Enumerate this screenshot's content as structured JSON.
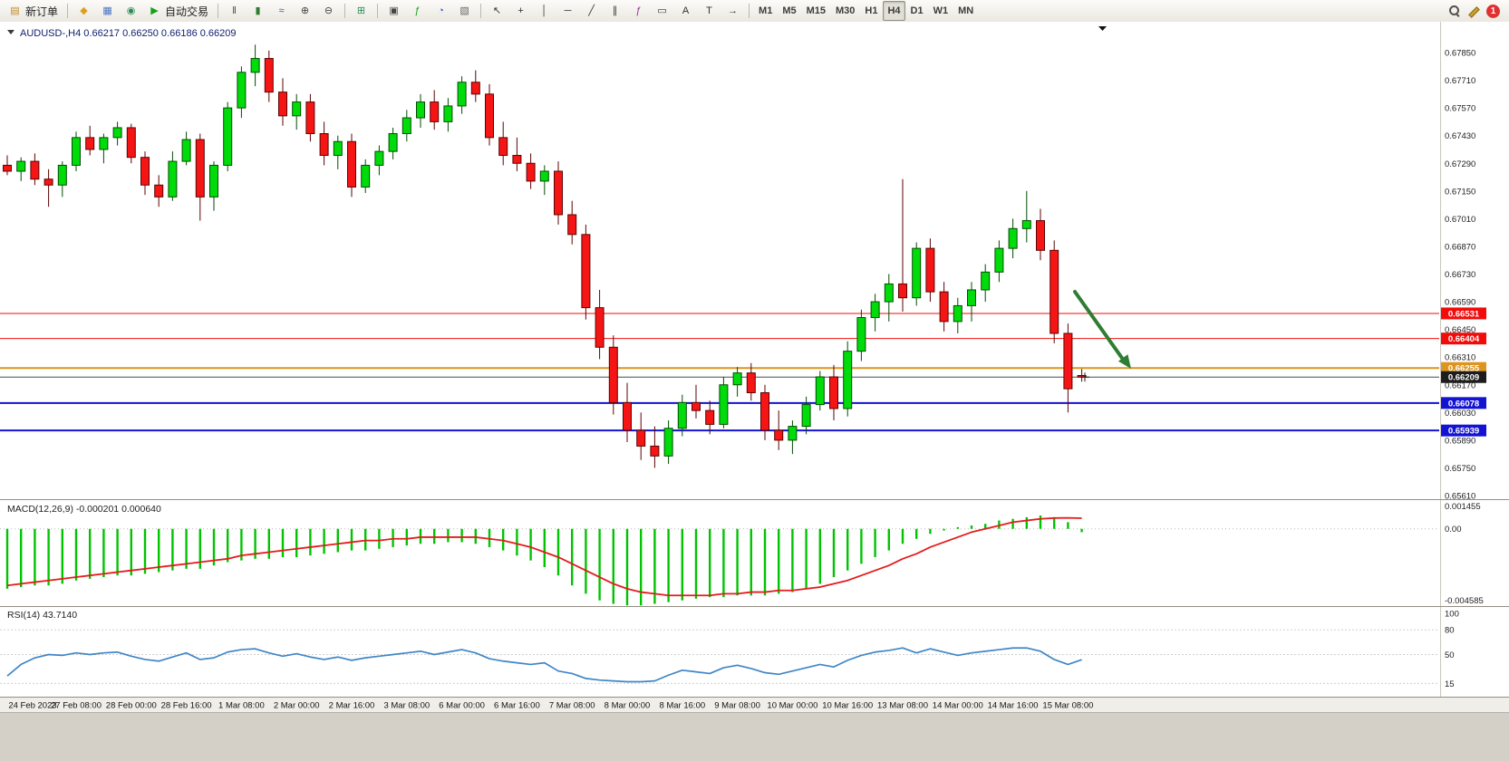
{
  "window": {
    "notification_count": "1"
  },
  "toolbar": {
    "items": [
      {
        "name": "new-order-button",
        "label": "新订单",
        "icon": "order-form-icon",
        "glyph": "▤",
        "glyph_color": "#c08a2a"
      },
      {
        "name": "separator"
      },
      {
        "name": "symbols-button",
        "icon": "gold-diamond-icon",
        "glyph": "◆",
        "glyph_color": "#d9a21b"
      },
      {
        "name": "charts-button",
        "icon": "chart-window-icon",
        "glyph": "▦",
        "glyph_color": "#4a72c4"
      },
      {
        "name": "market-watch-button",
        "icon": "globe-icon",
        "glyph": "◉",
        "glyph_color": "#2e8b57"
      },
      {
        "name": "auto-trading-button",
        "label": "自动交易",
        "icon": "play-icon",
        "glyph": "▶",
        "glyph_color": "#18a018"
      },
      {
        "name": "separator"
      },
      {
        "name": "bar-chart-button",
        "icon": "ohlc-bars-icon",
        "glyph": "‖",
        "glyph_color": "#444444"
      },
      {
        "name": "candlestick-chart-button",
        "icon": "candlestick-icon",
        "glyph": "▮",
        "glyph_color": "#2e7d32"
      },
      {
        "name": "line-chart-button",
        "icon": "line-chart-icon",
        "glyph": "≈",
        "glyph_color": "#2e5fb0"
      },
      {
        "name": "zoom-in-button",
        "icon": "zoom-in-icon",
        "glyph": "⊕",
        "glyph_color": "#444444"
      },
      {
        "name": "zoom-out-button",
        "icon": "zoom-out-icon",
        "glyph": "⊖",
        "glyph_color": "#444444"
      },
      {
        "name": "separator"
      },
      {
        "name": "tile-windows-button",
        "icon": "tile-windows-icon",
        "glyph": "⊞",
        "glyph_color": "#2e8b57"
      },
      {
        "name": "separator"
      },
      {
        "name": "arrange-windows-button",
        "icon": "arrange-windows-icon",
        "glyph": "▣",
        "glyph_color": "#444444"
      },
      {
        "name": "indicators-button",
        "icon": "indicators-icon",
        "glyph": "ƒ",
        "glyph_color": "#18a018"
      },
      {
        "name": "periods-button",
        "icon": "clock-icon",
        "glyph": "◔",
        "glyph_color": "#2e5fb0"
      },
      {
        "name": "templates-button",
        "icon": "template-icon",
        "glyph": "▧",
        "glyph_color": "#666666"
      },
      {
        "name": "separator"
      },
      {
        "name": "cursor-button",
        "icon": "cursor-arrow-icon",
        "glyph": "↖",
        "glyph_color": "#333333"
      },
      {
        "name": "crosshair-button",
        "icon": "crosshair-icon",
        "glyph": "+",
        "glyph_color": "#333333"
      },
      {
        "name": "vertical-line-button",
        "icon": "vertical-line-icon",
        "glyph": "│",
        "glyph_color": "#333333"
      },
      {
        "name": "horizontal-line-button",
        "icon": "horizontal-line-icon",
        "glyph": "─",
        "glyph_color": "#333333"
      },
      {
        "name": "trendline-button",
        "icon": "trendline-icon",
        "glyph": "╱",
        "glyph_color": "#333333"
      },
      {
        "name": "channel-button",
        "icon": "channel-icon",
        "glyph": "∥",
        "glyph_color": "#333333"
      },
      {
        "name": "fibonacci-button",
        "icon": "fibonacci-icon",
        "glyph": "ƒ",
        "glyph_color": "#9a2da0"
      },
      {
        "name": "shapes-button",
        "icon": "shapes-icon",
        "glyph": "▭",
        "glyph_color": "#333333"
      },
      {
        "name": "text-button",
        "icon": "text-icon",
        "glyph": "A",
        "glyph_color": "#333333"
      },
      {
        "name": "label-button",
        "icon": "label-icon",
        "glyph": "T",
        "glyph_color": "#333333"
      },
      {
        "name": "arrows-button",
        "icon": "arrows-icon",
        "glyph": "→",
        "glyph_color": "#333333"
      },
      {
        "name": "separator"
      }
    ],
    "right_items": [
      {
        "name": "search-button",
        "icon": "search-icon",
        "shape": "magnifier"
      },
      {
        "name": "edit-button",
        "icon": "pencil-icon",
        "shape": "pencil"
      },
      {
        "name": "notification-badge",
        "shape": "badge",
        "label": "1"
      }
    ]
  },
  "timeframes": {
    "items": [
      "M1",
      "M5",
      "M15",
      "M30",
      "H1",
      "H4",
      "D1",
      "W1",
      "MN"
    ],
    "active": "H4"
  },
  "chart": {
    "title_text": "AUDUSD-,H4 0.66217 0.66250 0.66186 0.66209",
    "title_color": "#10226e"
  },
  "chart_data": [
    {
      "type": "candlestick",
      "symbol": "AUDUSD-",
      "timeframe": "H4",
      "ohlc_display": "0.66217 0.66250 0.66186 0.66209",
      "ylim": [
        0.6561,
        0.6785
      ],
      "y_axis_ticks": [
        "0.67850",
        "0.67710",
        "0.67570",
        "0.67430",
        "0.67290",
        "0.67150",
        "0.67010",
        "0.66870",
        "0.66730",
        "0.66590",
        "0.66450",
        "0.66310",
        "0.66170",
        "0.66030",
        "0.65890",
        "0.65750",
        "0.65610"
      ],
      "x_axis_labels": [
        "24 Feb 2023",
        "27 Feb 08:00",
        "28 Feb 00:00",
        "28 Feb 16:00",
        "1 Mar 08:00",
        "2 Mar 00:00",
        "2 Mar 16:00",
        "3 Mar 08:00",
        "6 Mar 00:00",
        "6 Mar 16:00",
        "7 Mar 08:00",
        "8 Mar 00:00",
        "8 Mar 16:00",
        "9 Mar 08:00",
        "10 Mar 00:00",
        "10 Mar 16:00",
        "13 Mar 08:00",
        "14 Mar 00:00",
        "14 Mar 16:00",
        "15 Mar 08:00"
      ],
      "up_color": "#00dc0a",
      "down_color": "#f51515",
      "hlines": [
        {
          "price": 0.66531,
          "label": "0.66531",
          "color": "#f20b0b",
          "width": 1
        },
        {
          "price": 0.66404,
          "label": "0.66404",
          "color": "#f20b0b",
          "width": 1
        },
        {
          "price": 0.66255,
          "label": "0.66255",
          "color": "#dd951f",
          "width": 2
        },
        {
          "price": 0.66078,
          "label": "0.66078",
          "color": "#1313d1",
          "width": 2
        },
        {
          "price": 0.65939,
          "label": "0.65939",
          "color": "#1313d1",
          "width": 2
        }
      ],
      "current_price": {
        "price": 0.66209,
        "label": "0.66209",
        "color": "#1d1d1d"
      },
      "annotation_arrow": {
        "color": "#2f7d32"
      },
      "candles": [
        [
          0.6728,
          0.6733,
          0.6723,
          0.6725
        ],
        [
          0.6725,
          0.6732,
          0.672,
          0.673
        ],
        [
          0.673,
          0.6734,
          0.6718,
          0.6721
        ],
        [
          0.6721,
          0.6726,
          0.6707,
          0.6718
        ],
        [
          0.6718,
          0.673,
          0.6712,
          0.6728
        ],
        [
          0.6728,
          0.6745,
          0.6725,
          0.6742
        ],
        [
          0.6742,
          0.6748,
          0.6733,
          0.6736
        ],
        [
          0.6736,
          0.6744,
          0.6729,
          0.6742
        ],
        [
          0.6742,
          0.675,
          0.6738,
          0.6747
        ],
        [
          0.6747,
          0.6749,
          0.6729,
          0.6732
        ],
        [
          0.6732,
          0.6735,
          0.6713,
          0.6718
        ],
        [
          0.6718,
          0.6723,
          0.6707,
          0.6712
        ],
        [
          0.6712,
          0.6735,
          0.671,
          0.673
        ],
        [
          0.673,
          0.6745,
          0.6728,
          0.6741
        ],
        [
          0.6741,
          0.6744,
          0.67,
          0.6712
        ],
        [
          0.6712,
          0.673,
          0.6705,
          0.6728
        ],
        [
          0.6728,
          0.676,
          0.6725,
          0.6757
        ],
        [
          0.6757,
          0.6778,
          0.6752,
          0.6775
        ],
        [
          0.6775,
          0.6789,
          0.6768,
          0.6782
        ],
        [
          0.6782,
          0.6786,
          0.676,
          0.6765
        ],
        [
          0.6765,
          0.6772,
          0.6748,
          0.6753
        ],
        [
          0.6753,
          0.6764,
          0.6746,
          0.676
        ],
        [
          0.676,
          0.6764,
          0.674,
          0.6744
        ],
        [
          0.6744,
          0.675,
          0.6728,
          0.6733
        ],
        [
          0.6733,
          0.6743,
          0.6726,
          0.674
        ],
        [
          0.674,
          0.6744,
          0.6712,
          0.6717
        ],
        [
          0.6717,
          0.6731,
          0.6714,
          0.6728
        ],
        [
          0.6728,
          0.6738,
          0.6723,
          0.6735
        ],
        [
          0.6735,
          0.6747,
          0.6731,
          0.6744
        ],
        [
          0.6744,
          0.6756,
          0.674,
          0.6752
        ],
        [
          0.6752,
          0.6764,
          0.6747,
          0.676
        ],
        [
          0.676,
          0.6766,
          0.6746,
          0.675
        ],
        [
          0.675,
          0.6762,
          0.6745,
          0.6758
        ],
        [
          0.6758,
          0.6773,
          0.6754,
          0.677
        ],
        [
          0.677,
          0.6776,
          0.676,
          0.6764
        ],
        [
          0.6764,
          0.6769,
          0.6738,
          0.6742
        ],
        [
          0.6742,
          0.675,
          0.6728,
          0.6733
        ],
        [
          0.6733,
          0.6742,
          0.6725,
          0.6729
        ],
        [
          0.6729,
          0.6734,
          0.6716,
          0.672
        ],
        [
          0.672,
          0.6728,
          0.6713,
          0.6725
        ],
        [
          0.6725,
          0.673,
          0.6698,
          0.6703
        ],
        [
          0.6703,
          0.671,
          0.6688,
          0.6693
        ],
        [
          0.6693,
          0.6698,
          0.665,
          0.6656
        ],
        [
          0.6656,
          0.6665,
          0.663,
          0.6636
        ],
        [
          0.6636,
          0.6642,
          0.6602,
          0.6608
        ],
        [
          0.6608,
          0.6618,
          0.6588,
          0.6594
        ],
        [
          0.6594,
          0.6603,
          0.6579,
          0.6586
        ],
        [
          0.6586,
          0.6596,
          0.6575,
          0.6581
        ],
        [
          0.6581,
          0.6599,
          0.6577,
          0.6595
        ],
        [
          0.6595,
          0.6612,
          0.6591,
          0.6608
        ],
        [
          0.6608,
          0.6617,
          0.66,
          0.6604
        ],
        [
          0.6604,
          0.6609,
          0.6592,
          0.6597
        ],
        [
          0.6597,
          0.6621,
          0.6595,
          0.6617
        ],
        [
          0.6617,
          0.6626,
          0.6611,
          0.6623
        ],
        [
          0.6623,
          0.6628,
          0.6609,
          0.6613
        ],
        [
          0.6613,
          0.6617,
          0.6589,
          0.6594
        ],
        [
          0.6594,
          0.6604,
          0.6584,
          0.6589
        ],
        [
          0.6589,
          0.6599,
          0.6582,
          0.6596
        ],
        [
          0.6596,
          0.6611,
          0.6592,
          0.6607
        ],
        [
          0.6607,
          0.6624,
          0.6604,
          0.6621
        ],
        [
          0.6621,
          0.6627,
          0.6599,
          0.6605
        ],
        [
          0.6605,
          0.6639,
          0.6601,
          0.6634
        ],
        [
          0.6634,
          0.6655,
          0.6629,
          0.6651
        ],
        [
          0.6651,
          0.6663,
          0.6644,
          0.6659
        ],
        [
          0.6659,
          0.6673,
          0.6649,
          0.6668
        ],
        [
          0.6668,
          0.6721,
          0.6654,
          0.6661
        ],
        [
          0.6661,
          0.6689,
          0.6657,
          0.6686
        ],
        [
          0.6686,
          0.6691,
          0.6659,
          0.6664
        ],
        [
          0.6664,
          0.6669,
          0.6644,
          0.6649
        ],
        [
          0.6649,
          0.6661,
          0.6643,
          0.6657
        ],
        [
          0.6657,
          0.6669,
          0.6649,
          0.6665
        ],
        [
          0.6665,
          0.6678,
          0.6659,
          0.6674
        ],
        [
          0.6674,
          0.669,
          0.6669,
          0.6686
        ],
        [
          0.6686,
          0.6701,
          0.6681,
          0.6696
        ],
        [
          0.6696,
          0.6715,
          0.6689,
          0.67
        ],
        [
          0.67,
          0.6706,
          0.668,
          0.6685
        ],
        [
          0.6685,
          0.669,
          0.6638,
          0.6643
        ],
        [
          0.6643,
          0.6648,
          0.6603,
          0.6615
        ],
        [
          0.66217,
          0.6625,
          0.66186,
          0.66209
        ]
      ]
    },
    {
      "type": "bar",
      "name": "MACD",
      "label": "MACD(12,26,9) -0.000201 0.000640",
      "axis_ticks": [
        "0.001455",
        "0.00",
        "-0.004585"
      ],
      "ylim": [
        -0.004585,
        0.001455
      ],
      "bar_color": "#00c400",
      "signal_color": "#e31c1c",
      "values": [
        -0.0036,
        -0.0035,
        -0.0034,
        -0.0034,
        -0.0033,
        -0.0031,
        -0.003,
        -0.0029,
        -0.0028,
        -0.0028,
        -0.0027,
        -0.0026,
        -0.0025,
        -0.0024,
        -0.0024,
        -0.0022,
        -0.002,
        -0.0019,
        -0.0018,
        -0.0018,
        -0.0017,
        -0.0017,
        -0.0016,
        -0.0015,
        -0.0014,
        -0.0013,
        -0.0013,
        -0.0012,
        -0.0011,
        -0.001,
        -0.0009,
        -0.0009,
        -0.0008,
        -0.0008,
        -0.0009,
        -0.0011,
        -0.0013,
        -0.0016,
        -0.0019,
        -0.0023,
        -0.0028,
        -0.0034,
        -0.0039,
        -0.0043,
        -0.0045,
        -0.0046,
        -0.0046,
        -0.0045,
        -0.0044,
        -0.0043,
        -0.0042,
        -0.0041,
        -0.0041,
        -0.004,
        -0.004,
        -0.004,
        -0.0039,
        -0.0038,
        -0.0036,
        -0.0033,
        -0.0029,
        -0.0025,
        -0.0021,
        -0.0017,
        -0.0013,
        -0.0009,
        -0.0006,
        -0.0003,
        -0.0001,
        0.0001,
        0.0002,
        0.0003,
        0.0005,
        0.0006,
        0.0007,
        0.0008,
        0.0007,
        0.0004,
        -0.000201
      ],
      "signal": [
        -0.0034,
        -0.0033,
        -0.0032,
        -0.0031,
        -0.003,
        -0.0029,
        -0.0028,
        -0.0027,
        -0.0026,
        -0.0025,
        -0.0024,
        -0.0023,
        -0.0022,
        -0.0021,
        -0.002,
        -0.0019,
        -0.0018,
        -0.0016,
        -0.0015,
        -0.0014,
        -0.0013,
        -0.0012,
        -0.0011,
        -0.001,
        -0.0009,
        -0.0008,
        -0.0007,
        -0.0007,
        -0.0006,
        -0.0006,
        -0.0005,
        -0.0005,
        -0.0005,
        -0.0005,
        -0.0005,
        -0.0006,
        -0.0007,
        -0.0009,
        -0.0011,
        -0.0014,
        -0.0017,
        -0.0021,
        -0.0025,
        -0.0029,
        -0.0033,
        -0.0036,
        -0.0038,
        -0.0039,
        -0.004,
        -0.004,
        -0.004,
        -0.004,
        -0.0039,
        -0.0039,
        -0.0038,
        -0.0038,
        -0.0037,
        -0.0037,
        -0.0036,
        -0.0035,
        -0.0033,
        -0.0031,
        -0.0028,
        -0.0025,
        -0.0022,
        -0.0018,
        -0.0015,
        -0.0011,
        -0.0008,
        -0.0005,
        -0.0002,
        0.0,
        0.0002,
        0.0004,
        0.0005,
        0.0006,
        0.00065,
        0.00066,
        0.00064
      ]
    },
    {
      "type": "line",
      "name": "RSI",
      "label": "RSI(14) 43.7140",
      "axis_ticks": [
        "100",
        "80",
        "50",
        "15"
      ],
      "levels": [
        80,
        50,
        15
      ],
      "ylim": [
        0,
        100
      ],
      "line_color": "#3f86c6",
      "values": [
        24,
        38,
        46,
        50,
        49,
        52,
        50,
        52,
        53,
        48,
        44,
        42,
        47,
        52,
        44,
        46,
        53,
        56,
        57,
        52,
        48,
        51,
        47,
        44,
        47,
        43,
        46,
        48,
        50,
        52,
        54,
        50,
        53,
        56,
        52,
        45,
        42,
        40,
        38,
        40,
        30,
        27,
        21,
        19,
        18,
        17,
        17,
        18,
        25,
        31,
        29,
        27,
        34,
        37,
        33,
        28,
        26,
        30,
        34,
        38,
        35,
        43,
        49,
        53,
        55,
        58,
        52,
        57,
        53,
        49,
        52,
        54,
        56,
        58,
        58,
        54,
        44,
        38,
        43.71
      ]
    }
  ]
}
